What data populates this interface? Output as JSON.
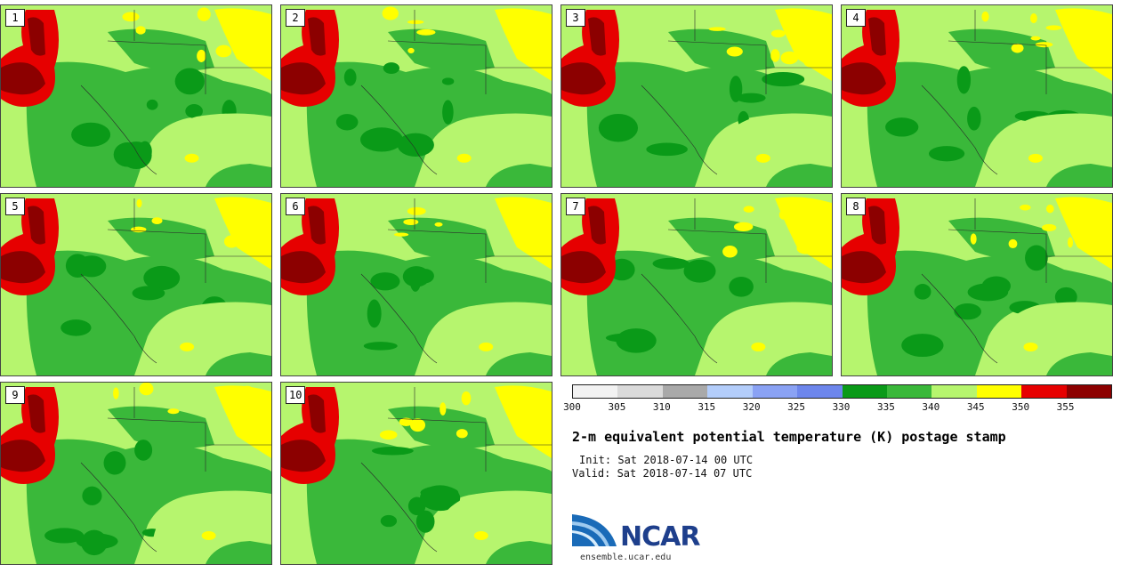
{
  "title": "2-m equivalent potential temperature (K) postage stamp",
  "init": "Init: Sat 2018-07-14 00 UTC",
  "valid": "Valid: Sat 2018-07-14 07 UTC",
  "logo_text": "NCAR",
  "site": "ensemble.ucar.edu",
  "panels": [
    "1",
    "2",
    "3",
    "4",
    "5",
    "6",
    "7",
    "8",
    "9",
    "10"
  ],
  "colorbar": {
    "ticks": [
      "300",
      "305",
      "310",
      "315",
      "320",
      "325",
      "330",
      "335",
      "340",
      "345",
      "350",
      "355"
    ],
    "colors": [
      "#f2f2f2",
      "#dadada",
      "#a9a9a9",
      "#b3cdfa",
      "#8aa2f4",
      "#6d86ec",
      "#0a9a18",
      "#3ab83a",
      "#b6f56e",
      "#ffff00",
      "#e60000",
      "#8c0000"
    ]
  },
  "field_colors": {
    "light": "#b6f56e",
    "mid": "#3ab83a",
    "dark": "#0a9a18",
    "yellow": "#ffff00",
    "red": "#e60000",
    "darkred": "#8c0000"
  }
}
